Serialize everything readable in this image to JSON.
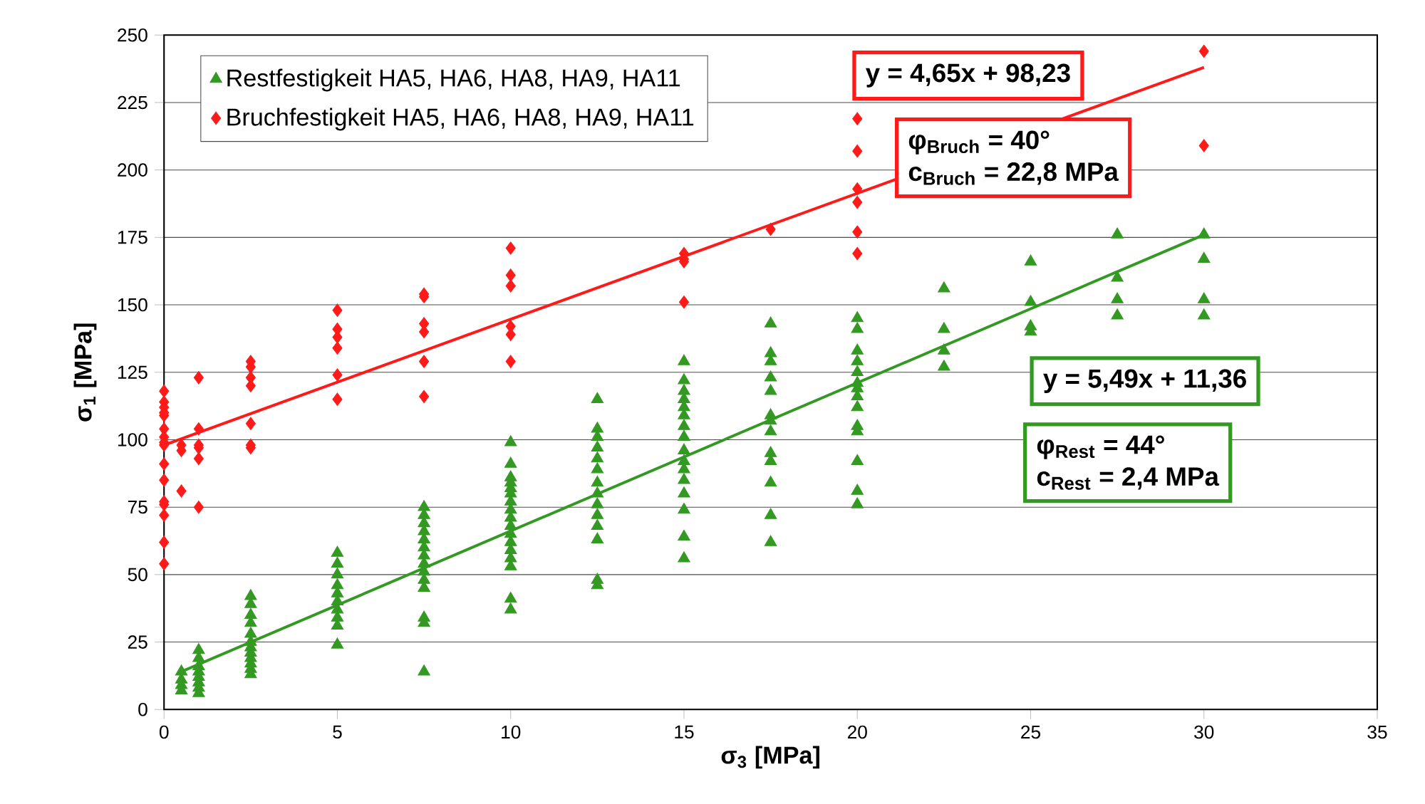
{
  "chart_data": {
    "type": "scatter",
    "xlabel": "σ$_{3}$ [MPa]",
    "ylabel": "σ$_{1}$ [MPa]",
    "xlim": [
      0,
      35
    ],
    "ylim": [
      0,
      250
    ],
    "xticks": [
      0,
      5,
      10,
      15,
      20,
      25,
      30,
      35
    ],
    "yticks": [
      0,
      25,
      50,
      75,
      100,
      125,
      150,
      175,
      200,
      225,
      250
    ],
    "grid": "y",
    "legend": "top left",
    "series": [
      {
        "name": "Restfestigkeit HA5, HA6, HA8, HA9, HA11",
        "color": "#339922",
        "marker": "triangle",
        "x": [
          0.5,
          0.5,
          0.5,
          0.5,
          1,
          1,
          1,
          1,
          1,
          1,
          1,
          1,
          2.5,
          2.5,
          2.5,
          2.5,
          2.5,
          2.5,
          2.5,
          2.5,
          2.5,
          2.5,
          2.5,
          2.5,
          5,
          5,
          5,
          5,
          5,
          5,
          5,
          5,
          5,
          5,
          7.5,
          7.5,
          7.5,
          7.5,
          7.5,
          7.5,
          7.5,
          7.5,
          7.5,
          7.5,
          7.5,
          7.5,
          7.5,
          7.5,
          10,
          10,
          10,
          10,
          10,
          10,
          10,
          10,
          10,
          10,
          10,
          10,
          10,
          10,
          10,
          10,
          10,
          12.5,
          12.5,
          12.5,
          12.5,
          12.5,
          12.5,
          12.5,
          12.5,
          12.5,
          12.5,
          12.5,
          12.5,
          12.5,
          12.5,
          15,
          15,
          15,
          15,
          15,
          15,
          15,
          15,
          15,
          15,
          15,
          15,
          15,
          15,
          15,
          15,
          17.5,
          17.5,
          17.5,
          17.5,
          17.5,
          17.5,
          17.5,
          17.5,
          17.5,
          17.5,
          17.5,
          17.5,
          17.5,
          20,
          20,
          20,
          20,
          20,
          20,
          20,
          20,
          20,
          20,
          20,
          20,
          20,
          20,
          22.5,
          22.5,
          22.5,
          22.5,
          25,
          25,
          25,
          25,
          27.5,
          27.5,
          27.5,
          27.5,
          30,
          30,
          30,
          30
        ],
        "values": [
          14,
          11,
          9,
          7,
          22,
          19,
          16,
          14,
          12,
          10,
          8,
          6,
          42,
          39,
          35,
          32,
          28,
          25,
          23,
          21,
          19,
          17,
          15,
          13,
          58,
          54,
          50,
          46,
          43,
          40,
          37,
          34,
          31,
          24,
          75,
          72,
          69,
          66,
          63,
          60,
          57,
          54,
          51,
          48,
          45,
          34,
          32,
          14,
          99,
          91,
          86,
          84,
          82,
          80,
          77,
          74,
          71,
          68,
          65,
          62,
          59,
          56,
          53,
          41,
          37,
          115,
          104,
          101,
          97,
          93,
          89,
          84,
          80,
          76,
          72,
          68,
          63,
          48,
          46,
          129,
          122,
          118,
          115,
          112,
          109,
          105,
          101,
          96,
          92,
          89,
          85,
          80,
          74,
          64,
          56,
          143,
          132,
          129,
          123,
          118,
          109,
          107,
          103,
          95,
          92,
          84,
          72,
          62,
          145,
          141,
          133,
          129,
          125,
          121,
          119,
          116,
          112,
          105,
          103,
          92,
          81,
          76,
          156,
          141,
          133,
          127,
          166,
          151,
          142,
          140,
          176,
          160,
          152,
          146,
          176,
          167,
          152,
          146
        ]
      },
      {
        "name": "Bruchfestigkeit HA5, HA6, HA8, HA9, HA11",
        "color": "#ff1a1a",
        "marker": "diamond",
        "x": [
          0,
          0,
          0,
          0,
          0,
          0,
          0,
          0,
          0,
          0,
          0,
          0,
          0,
          0,
          0,
          0,
          0.5,
          0.5,
          0.5,
          1,
          1,
          1,
          1,
          1,
          1,
          2.5,
          2.5,
          2.5,
          2.5,
          2.5,
          2.5,
          2.5,
          5,
          5,
          5,
          5,
          5,
          5,
          7.5,
          7.5,
          7.5,
          7.5,
          7.5,
          7.5,
          10,
          10,
          10,
          10,
          10,
          10,
          15,
          15,
          15,
          15,
          17.5,
          20,
          20,
          20,
          20,
          20,
          20,
          30,
          30
        ],
        "values": [
          118,
          114,
          112,
          110,
          109,
          104,
          101,
          99,
          98,
          91,
          85,
          77,
          76,
          72,
          62,
          54,
          98,
          96,
          81,
          123,
          104,
          98,
          97,
          93,
          75,
          129,
          127,
          123,
          120,
          106,
          98,
          97,
          148,
          141,
          138,
          134,
          124,
          115,
          154,
          153,
          143,
          140,
          129,
          116,
          171,
          161,
          157,
          142,
          139,
          129,
          169,
          167,
          166,
          151,
          178,
          219,
          207,
          193,
          188,
          177,
          169,
          244,
          209
        ]
      },
      {
        "type": "line",
        "color": "#ff1a1a",
        "x": [
          0,
          30
        ],
        "values": [
          98,
          238
        ]
      },
      {
        "type": "line",
        "color": "#339922",
        "x": [
          0.5,
          30
        ],
        "values": [
          14,
          176
        ]
      }
    ],
    "annotations": [
      "y = 4,65x + 98,23",
      "φ$_{Bruch}$ = 40°",
      "c$_{Bruch}$ = 22,8 MPa",
      "y = 5,49x + 11,36",
      "φ$_{Rest}$ = 44°",
      "c$_{Rest}$ = 2,4 MPa"
    ]
  }
}
